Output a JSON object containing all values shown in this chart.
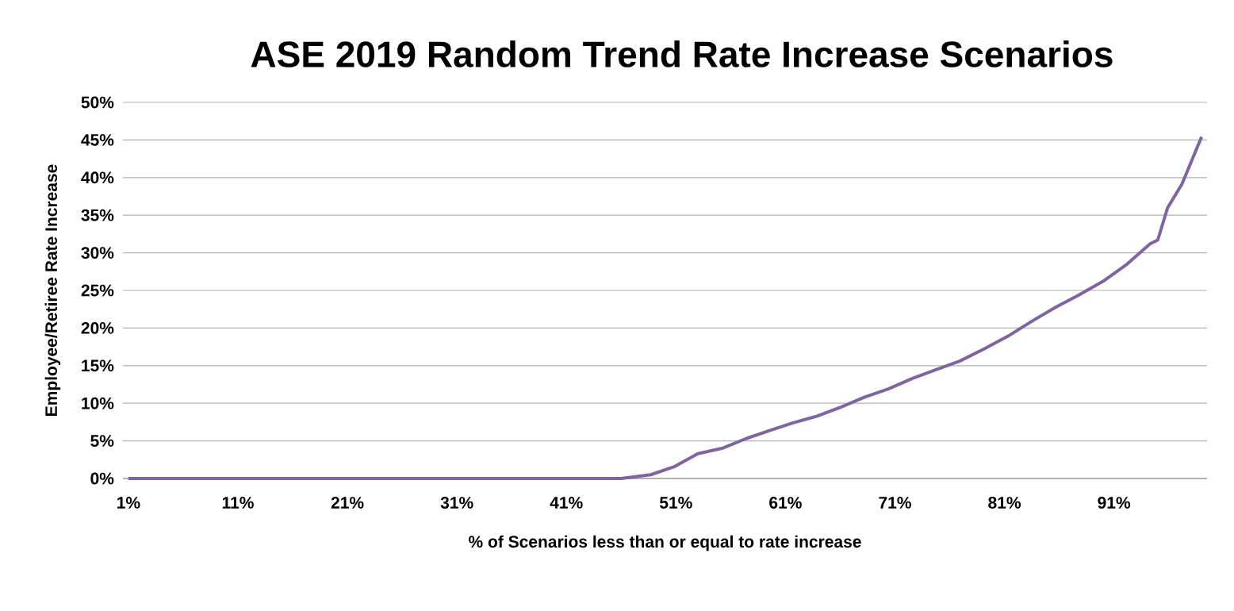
{
  "chart_data": {
    "type": "line",
    "title": "ASE 2019 Random Trend Rate Increase Scenarios",
    "xlabel": "% of Scenarios less than or equal to rate increase",
    "ylabel": "Employee/Retiree Rate Increase",
    "x": [
      1,
      11,
      21,
      31,
      41,
      46,
      48.7,
      50.9,
      53,
      55.2,
      57.4,
      59.6,
      61.7,
      63.9,
      66.1,
      68.2,
      70.4,
      72.6,
      74.8,
      76.9,
      79.1,
      81.3,
      83.5,
      85.6,
      87.8,
      90,
      92.2,
      94.3,
      95,
      95.9,
      97.2,
      99
    ],
    "series": [
      {
        "color": "#8064a2",
        "values": [
          0,
          0,
          0,
          0,
          0,
          0,
          0.5,
          1.6,
          3.3,
          4.0,
          5.3,
          6.4,
          7.4,
          8.3,
          9.5,
          10.8,
          11.9,
          13.3,
          14.5,
          15.6,
          17.2,
          18.9,
          20.9,
          22.7,
          24.4,
          26.2,
          28.5,
          31.2,
          31.7,
          36,
          39.1,
          45.4
        ]
      }
    ],
    "xlim": [
      0.5,
      99.5
    ],
    "ylim": [
      0,
      50
    ],
    "xticks": [
      {
        "value": 1,
        "label": "1%"
      },
      {
        "value": 11,
        "label": "11%"
      },
      {
        "value": 21,
        "label": "21%"
      },
      {
        "value": 31,
        "label": "31%"
      },
      {
        "value": 41,
        "label": "41%"
      },
      {
        "value": 51,
        "label": "51%"
      },
      {
        "value": 61,
        "label": "61%"
      },
      {
        "value": 71,
        "label": "71%"
      },
      {
        "value": 81,
        "label": "81%"
      },
      {
        "value": 91,
        "label": "91%"
      }
    ],
    "yticks": [
      {
        "value": 0,
        "label": "0%"
      },
      {
        "value": 5,
        "label": "5%"
      },
      {
        "value": 10,
        "label": "10%"
      },
      {
        "value": 15,
        "label": "15%"
      },
      {
        "value": 20,
        "label": "20%"
      },
      {
        "value": 25,
        "label": "25%"
      },
      {
        "value": 30,
        "label": "30%"
      },
      {
        "value": 35,
        "label": "35%"
      },
      {
        "value": 40,
        "label": "40%"
      },
      {
        "value": 45,
        "label": "45%"
      },
      {
        "value": 50,
        "label": "50%"
      }
    ],
    "grid": "y"
  }
}
